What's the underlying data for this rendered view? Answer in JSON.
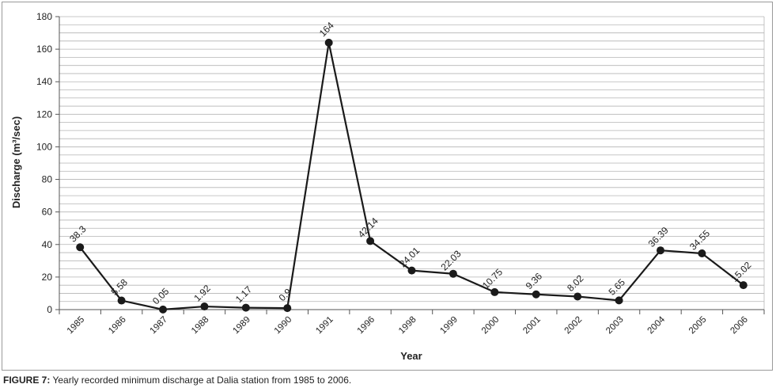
{
  "chart_data": {
    "type": "line",
    "categories": [
      "1985",
      "1986",
      "1987",
      "1988",
      "1989",
      "1990",
      "1991",
      "1996",
      "1998",
      "1999",
      "2000",
      "2001",
      "2002",
      "2003",
      "2004",
      "2005",
      "2006"
    ],
    "series": [
      {
        "values": [
          38.3,
          5.58,
          0.05,
          1.92,
          1.17,
          0.9,
          164,
          42.14,
          24.01,
          22.03,
          10.75,
          9.36,
          8.02,
          5.65,
          36.39,
          34.55,
          15.02
        ]
      }
    ],
    "data_labels": [
      "38.3",
      "5.58",
      "0.05",
      "1.92",
      "1.17",
      "0.9",
      "164",
      "42.14",
      "24.01",
      "22.03",
      "10.75",
      "9.36",
      "8.02",
      "5.65",
      "36.39",
      "34.55",
      "15.02"
    ],
    "yticks": [
      0,
      20,
      40,
      60,
      80,
      100,
      120,
      140,
      160,
      180
    ],
    "ylim": [
      0,
      180
    ],
    "minor_grid_step": 5,
    "xlabel": "Year",
    "ylabel": "Discharge (m³/sec)",
    "grid": true,
    "colors": {
      "line": "#1a1a1a",
      "marker": "#1a1a1a",
      "grid": "#b5b5b5",
      "axis": "#555555"
    }
  },
  "caption": {
    "label": "FIGURE 7:",
    "text": " Yearly recorded minimum discharge at Dalia station from 1985 to 2006."
  }
}
